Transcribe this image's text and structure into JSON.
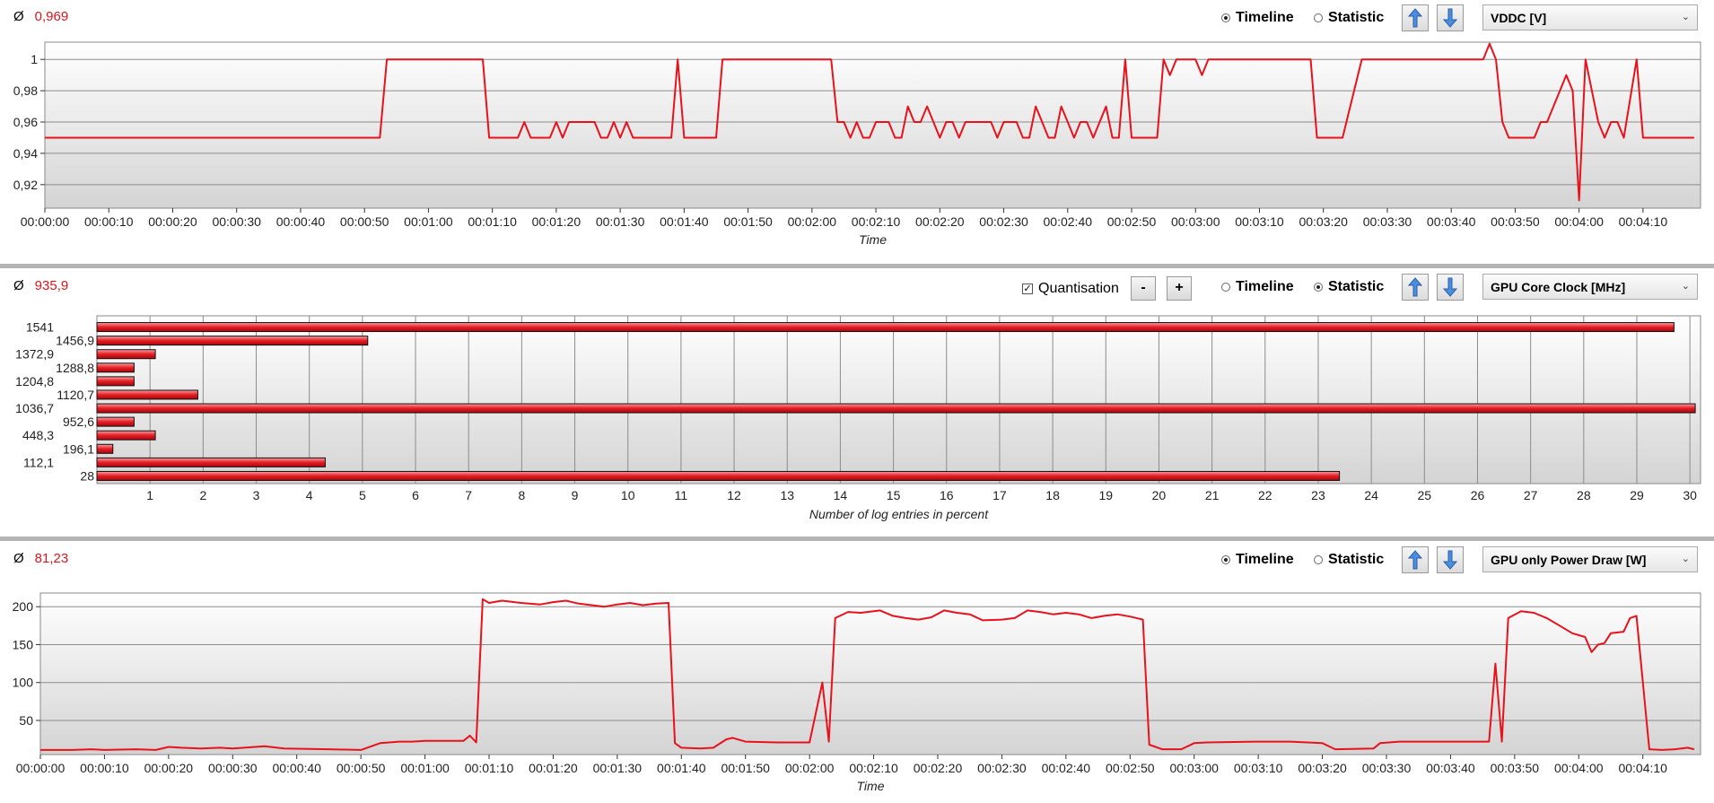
{
  "panels": [
    {
      "average_symbol": "Ø",
      "average": "0,969",
      "timeline_label": "Timeline",
      "statistic_label": "Statistic",
      "selected_mode": "timeline",
      "sensor": "VDDC [V]",
      "xlabel": "Time",
      "icons": {
        "up": "arrow-up-icon",
        "down": "arrow-down-icon",
        "dropdown": "chevron-down-icon"
      }
    },
    {
      "average_symbol": "Ø",
      "average": "935,9",
      "quantisation_label": "Quantisation",
      "quantisation_checked": true,
      "minus_label": "-",
      "plus_label": "+",
      "timeline_label": "Timeline",
      "statistic_label": "Statistic",
      "selected_mode": "statistic",
      "sensor": "GPU Core Clock [MHz]",
      "xlabel": "Number of log entries in percent",
      "icons": {
        "up": "arrow-up-icon",
        "down": "arrow-down-icon",
        "dropdown": "chevron-down-icon"
      }
    },
    {
      "average_symbol": "Ø",
      "average": "81,23",
      "timeline_label": "Timeline",
      "statistic_label": "Statistic",
      "selected_mode": "timeline",
      "sensor": "GPU only Power Draw [W]",
      "xlabel": "Time",
      "icons": {
        "up": "arrow-up-icon",
        "down": "arrow-down-icon",
        "dropdown": "chevron-down-icon"
      }
    }
  ],
  "colors": {
    "line": "#e8121c",
    "average": "#e0141c",
    "bar": "#e51d25",
    "grid": "#8c8c8c"
  },
  "chart_data": [
    {
      "type": "line",
      "ylabel": "",
      "ylim": [
        0.905,
        1.011
      ],
      "yticks": [
        1,
        0.98,
        0.96,
        0.94,
        0.92
      ],
      "ytick_labels": [
        "1",
        "0,98",
        "0,96",
        "0,94",
        "0,92"
      ],
      "xlim": [
        0,
        259
      ],
      "xticks": [
        0,
        10,
        20,
        30,
        40,
        50,
        60,
        70,
        80,
        90,
        100,
        110,
        120,
        130,
        140,
        150,
        160,
        170,
        180,
        190,
        200,
        210,
        220,
        230,
        240,
        250
      ],
      "xtick_labels": [
        "00:00:00",
        "00:00:10",
        "00:00:20",
        "00:00:30",
        "00:00:40",
        "00:00:50",
        "00:01:00",
        "00:01:10",
        "00:01:20",
        "00:01:30",
        "00:01:40",
        "00:01:50",
        "00:02:00",
        "00:02:10",
        "00:02:20",
        "00:02:30",
        "00:02:40",
        "00:02:50",
        "00:03:00",
        "00:03:10",
        "00:03:20",
        "00:03:30",
        "00:03:40",
        "00:03:50",
        "00:04:00",
        "00:04:10"
      ],
      "xlabel": "Time",
      "series": [
        {
          "points": [
            [
              0,
              0.95
            ],
            [
              52.4,
              0.95
            ],
            [
              53.5,
              1
            ],
            [
              68.5,
              1
            ],
            [
              69.5,
              0.95
            ],
            [
              74,
              0.95
            ],
            [
              75,
              0.96
            ],
            [
              76,
              0.95
            ],
            [
              79,
              0.95
            ],
            [
              80,
              0.96
            ],
            [
              81,
              0.95
            ],
            [
              82,
              0.96
            ],
            [
              86,
              0.96
            ],
            [
              87,
              0.95
            ],
            [
              88,
              0.95
            ],
            [
              89,
              0.96
            ],
            [
              90,
              0.95
            ],
            [
              91,
              0.96
            ],
            [
              92,
              0.95
            ],
            [
              98,
              0.95
            ],
            [
              99,
              1
            ],
            [
              100,
              0.95
            ],
            [
              105,
              0.95
            ],
            [
              106,
              1
            ],
            [
              123,
              1
            ],
            [
              124,
              0.96
            ],
            [
              125,
              0.96
            ],
            [
              126,
              0.95
            ],
            [
              127,
              0.96
            ],
            [
              128,
              0.95
            ],
            [
              129,
              0.95
            ],
            [
              130,
              0.96
            ],
            [
              132,
              0.96
            ],
            [
              133,
              0.95
            ],
            [
              134,
              0.95
            ],
            [
              135,
              0.97
            ],
            [
              136,
              0.96
            ],
            [
              137,
              0.96
            ],
            [
              138,
              0.97
            ],
            [
              139,
              0.96
            ],
            [
              140,
              0.95
            ],
            [
              141,
              0.96
            ],
            [
              142,
              0.96
            ],
            [
              143,
              0.95
            ],
            [
              144,
              0.96
            ],
            [
              148,
              0.96
            ],
            [
              149,
              0.95
            ],
            [
              150,
              0.96
            ],
            [
              152,
              0.96
            ],
            [
              153,
              0.95
            ],
            [
              154,
              0.95
            ],
            [
              155,
              0.97
            ],
            [
              156,
              0.96
            ],
            [
              157,
              0.95
            ],
            [
              158,
              0.95
            ],
            [
              159,
              0.97
            ],
            [
              160,
              0.96
            ],
            [
              161,
              0.95
            ],
            [
              162,
              0.96
            ],
            [
              163,
              0.96
            ],
            [
              164,
              0.95
            ],
            [
              165,
              0.96
            ],
            [
              166,
              0.97
            ],
            [
              167,
              0.95
            ],
            [
              168,
              0.95
            ],
            [
              169,
              1
            ],
            [
              170,
              0.95
            ],
            [
              174,
              0.95
            ],
            [
              175,
              1
            ],
            [
              176,
              0.99
            ],
            [
              177,
              1
            ],
            [
              180,
              1
            ],
            [
              181,
              0.99
            ],
            [
              182,
              1
            ],
            [
              198,
              1
            ],
            [
              199,
              0.95
            ],
            [
              203,
              0.95
            ],
            [
              206,
              1
            ],
            [
              225,
              1
            ],
            [
              226,
              1.01
            ],
            [
              227,
              1
            ],
            [
              228,
              0.96
            ],
            [
              229,
              0.95
            ],
            [
              233,
              0.95
            ],
            [
              234,
              0.96
            ],
            [
              235,
              0.96
            ],
            [
              238,
              0.99
            ],
            [
              239,
              0.98
            ],
            [
              240,
              0.91
            ],
            [
              241,
              1
            ],
            [
              243,
              0.96
            ],
            [
              244,
              0.95
            ],
            [
              245,
              0.96
            ],
            [
              246,
              0.96
            ],
            [
              247,
              0.95
            ],
            [
              249,
              1
            ],
            [
              250,
              0.95
            ],
            [
              258,
              0.95
            ]
          ]
        }
      ]
    },
    {
      "type": "bar",
      "orientation": "horizontal",
      "xlabel": "Number of log entries in percent",
      "xlim": [
        0,
        30.2
      ],
      "xticks": [
        1,
        2,
        3,
        4,
        5,
        6,
        7,
        8,
        9,
        10,
        11,
        12,
        13,
        14,
        15,
        16,
        17,
        18,
        19,
        20,
        21,
        22,
        23,
        24,
        25,
        26,
        27,
        28,
        29,
        30
      ],
      "categories": [
        "1541",
        "1456,9",
        "1372,9",
        "1288,8",
        "1204,8",
        "1120,7",
        "1036,7",
        "952,6",
        "448,3",
        "196,1",
        "112,1",
        "28"
      ],
      "values": [
        29.7,
        5.1,
        1.1,
        0.7,
        0.7,
        1.9,
        30.1,
        0.7,
        1.1,
        0.3,
        4.3,
        23.4
      ]
    },
    {
      "type": "line",
      "ylabel": "",
      "ylim": [
        5,
        218
      ],
      "yticks": [
        200,
        150,
        100,
        50
      ],
      "ytick_labels": [
        "200",
        "150",
        "100",
        "50"
      ],
      "xlim": [
        0,
        259
      ],
      "xticks": [
        0,
        10,
        20,
        30,
        40,
        50,
        60,
        70,
        80,
        90,
        100,
        110,
        120,
        130,
        140,
        150,
        160,
        170,
        180,
        190,
        200,
        210,
        220,
        230,
        240,
        250
      ],
      "xtick_labels": [
        "00:00:00",
        "00:00:10",
        "00:00:20",
        "00:00:30",
        "00:00:40",
        "00:00:50",
        "00:01:00",
        "00:01:10",
        "00:01:20",
        "00:01:30",
        "00:01:40",
        "00:01:50",
        "00:02:00",
        "00:02:10",
        "00:02:20",
        "00:02:30",
        "00:02:40",
        "00:02:50",
        "00:03:00",
        "00:03:10",
        "00:03:20",
        "00:03:30",
        "00:03:40",
        "00:03:50",
        "00:04:00",
        "00:04:10"
      ],
      "xlabel": "Time",
      "series": [
        {
          "points": [
            [
              0,
              11
            ],
            [
              5,
              11
            ],
            [
              8,
              12
            ],
            [
              10,
              11
            ],
            [
              15,
              12
            ],
            [
              18,
              11
            ],
            [
              20,
              15
            ],
            [
              22,
              14
            ],
            [
              25,
              13
            ],
            [
              28,
              14
            ],
            [
              30,
              13
            ],
            [
              35,
              16
            ],
            [
              38,
              13
            ],
            [
              45,
              12
            ],
            [
              50,
              11
            ],
            [
              53,
              20
            ],
            [
              56,
              22
            ],
            [
              58,
              22
            ],
            [
              60,
              23
            ],
            [
              66,
              23
            ],
            [
              67,
              30
            ],
            [
              68,
              21
            ],
            [
              69,
              210
            ],
            [
              70,
              205
            ],
            [
              72,
              208
            ],
            [
              75,
              205
            ],
            [
              78,
              203
            ],
            [
              80,
              206
            ],
            [
              82,
              208
            ],
            [
              84,
              204
            ],
            [
              86,
              202
            ],
            [
              88,
              200
            ],
            [
              90,
              203
            ],
            [
              92,
              205
            ],
            [
              94,
              202
            ],
            [
              96,
              204
            ],
            [
              98,
              205
            ],
            [
              99,
              20
            ],
            [
              100,
              14
            ],
            [
              103,
              13
            ],
            [
              105,
              14
            ],
            [
              107,
              25
            ],
            [
              108,
              27
            ],
            [
              110,
              22
            ],
            [
              115,
              21
            ],
            [
              120,
              21
            ],
            [
              122,
              100
            ],
            [
              123,
              22
            ],
            [
              124,
              185
            ],
            [
              126,
              193
            ],
            [
              128,
              192
            ],
            [
              131,
              195
            ],
            [
              133,
              188
            ],
            [
              135,
              185
            ],
            [
              137,
              183
            ],
            [
              139,
              186
            ],
            [
              141,
              195
            ],
            [
              143,
              192
            ],
            [
              145,
              190
            ],
            [
              147,
              182
            ],
            [
              150,
              183
            ],
            [
              152,
              185
            ],
            [
              154,
              195
            ],
            [
              156,
              193
            ],
            [
              158,
              190
            ],
            [
              160,
              192
            ],
            [
              162,
              190
            ],
            [
              164,
              185
            ],
            [
              166,
              188
            ],
            [
              168,
              190
            ],
            [
              170,
              187
            ],
            [
              172,
              183
            ],
            [
              173,
              18
            ],
            [
              175,
              12
            ],
            [
              178,
              12
            ],
            [
              180,
              20
            ],
            [
              182,
              21
            ],
            [
              190,
              22
            ],
            [
              195,
              22
            ],
            [
              200,
              20
            ],
            [
              202,
              12
            ],
            [
              208,
              13
            ],
            [
              209,
              20
            ],
            [
              212,
              22
            ],
            [
              220,
              22
            ],
            [
              226,
              22
            ],
            [
              227,
              125
            ],
            [
              228,
              22
            ],
            [
              229,
              185
            ],
            [
              231,
              194
            ],
            [
              233,
              192
            ],
            [
              235,
              185
            ],
            [
              237,
              175
            ],
            [
              239,
              165
            ],
            [
              241,
              160
            ],
            [
              242,
              140
            ],
            [
              243,
              150
            ],
            [
              244,
              152
            ],
            [
              245,
              165
            ],
            [
              247,
              167
            ],
            [
              248,
              185
            ],
            [
              249,
              188
            ],
            [
              251,
              12
            ],
            [
              253,
              11
            ],
            [
              255,
              12
            ],
            [
              257,
              14
            ],
            [
              258,
              12
            ]
          ]
        }
      ]
    }
  ]
}
